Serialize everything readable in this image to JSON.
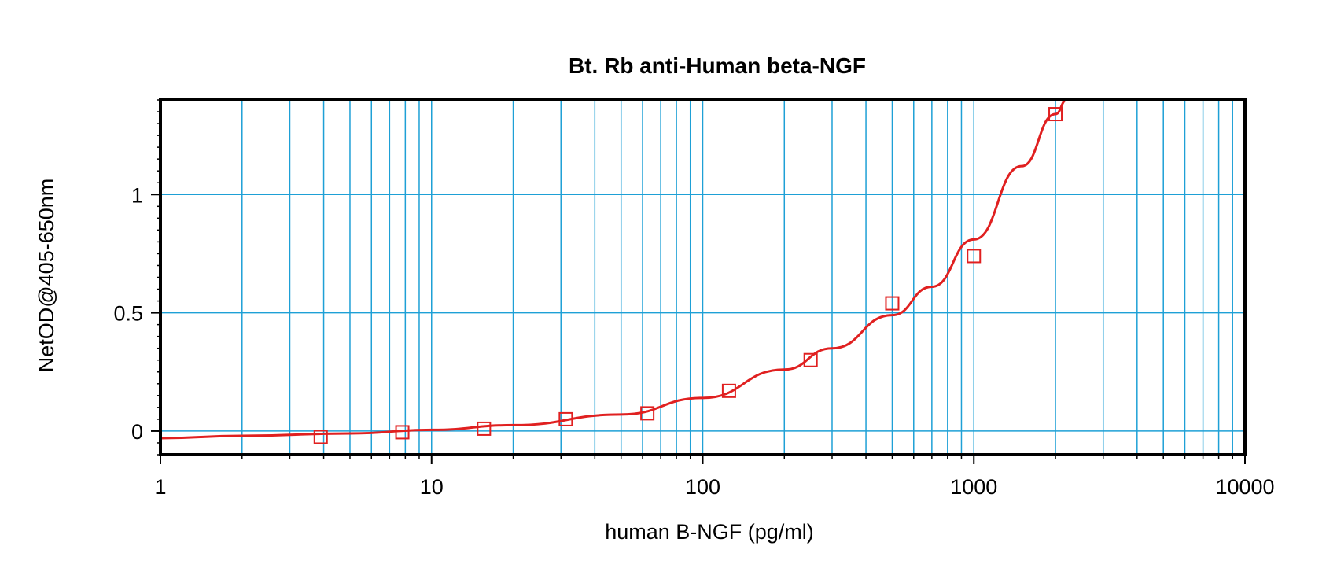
{
  "chart_data": {
    "type": "scatter",
    "title": "Bt. Rb anti-Human beta-NGF",
    "xlabel": "human B-NGF (pg/ml)",
    "ylabel": "NetOD@405-650nm",
    "x_scale": "log",
    "xlim": [
      1,
      10000
    ],
    "ylim": [
      -0.1,
      1.4
    ],
    "x_ticks": [
      1,
      10,
      100,
      1000,
      10000
    ],
    "x_tick_labels": [
      "1",
      "10",
      "100",
      "1000",
      "10000"
    ],
    "y_ticks": [
      0,
      0.5,
      1
    ],
    "y_tick_labels": [
      "0",
      "0.5",
      "1"
    ],
    "grid": true,
    "legend": "none",
    "series": [
      {
        "marker": "open-square",
        "x": [
          3.9,
          7.8,
          15.6,
          31.25,
          62.5,
          125,
          250,
          500,
          1000,
          2000
        ],
        "y": [
          -0.025,
          -0.005,
          0.01,
          0.05,
          0.075,
          0.17,
          0.3,
          0.54,
          0.74,
          1.34
        ]
      }
    ],
    "fit_curve": {
      "x": [
        1,
        2,
        5,
        10,
        20,
        50,
        100,
        200,
        300,
        500,
        700,
        1000,
        1500,
        2000,
        2200
      ],
      "y": [
        -0.03,
        -0.02,
        -0.01,
        0.005,
        0.025,
        0.07,
        0.14,
        0.26,
        0.35,
        0.49,
        0.61,
        0.81,
        1.12,
        1.34,
        1.4
      ]
    },
    "colors": {
      "grid": "#1ea0d6",
      "series": "#e02020",
      "axis": "#000000"
    }
  }
}
